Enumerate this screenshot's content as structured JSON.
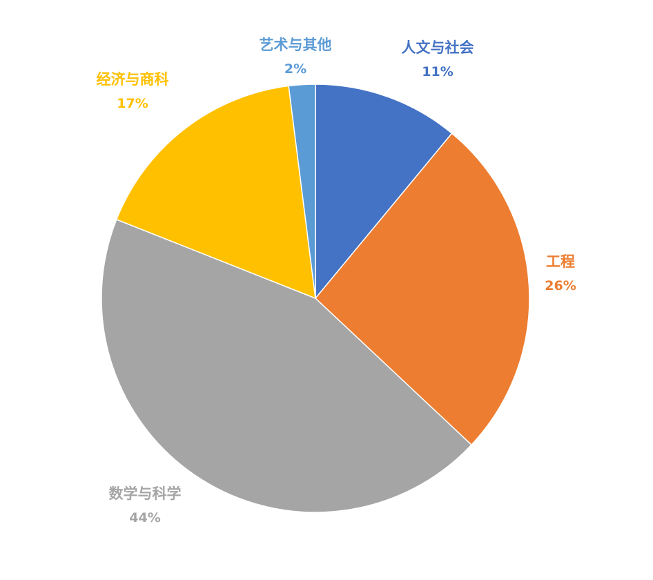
{
  "chart_data": {
    "type": "pie",
    "start_angle_deg": 0,
    "direction": "clockwise",
    "slices": [
      {
        "name": "人文与社会",
        "value": 11,
        "label": "11%",
        "color": "#4472C4"
      },
      {
        "name": "工程",
        "value": 26,
        "label": "26%",
        "color": "#ED7D31"
      },
      {
        "name": "数学与科学",
        "value": 44,
        "label": "44%",
        "color": "#A5A5A5"
      },
      {
        "name": "经济与商科",
        "value": 17,
        "label": "17%",
        "color": "#FFC000"
      },
      {
        "name": "艺术与其他",
        "value": 2,
        "label": "2%",
        "color": "#5B9BD5"
      }
    ],
    "slice_border_color": "#FFFFFF"
  }
}
